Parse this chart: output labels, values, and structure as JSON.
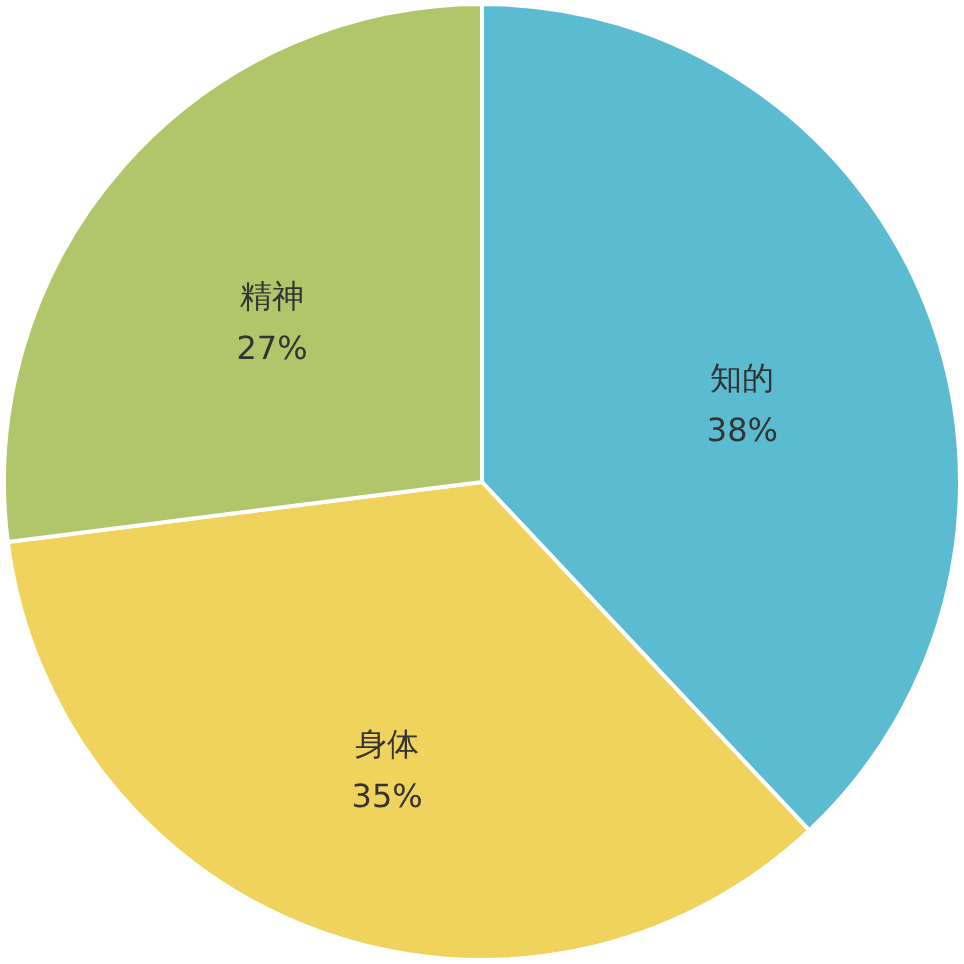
{
  "chart_data": {
    "type": "pie",
    "categories": [
      "知的",
      "身体",
      "精神"
    ],
    "values": [
      38,
      35,
      27
    ],
    "colors": [
      "#5bbcd1",
      "#f0d35c",
      "#b1c66a"
    ],
    "value_labels": [
      "38%",
      "35%",
      "27%"
    ]
  }
}
